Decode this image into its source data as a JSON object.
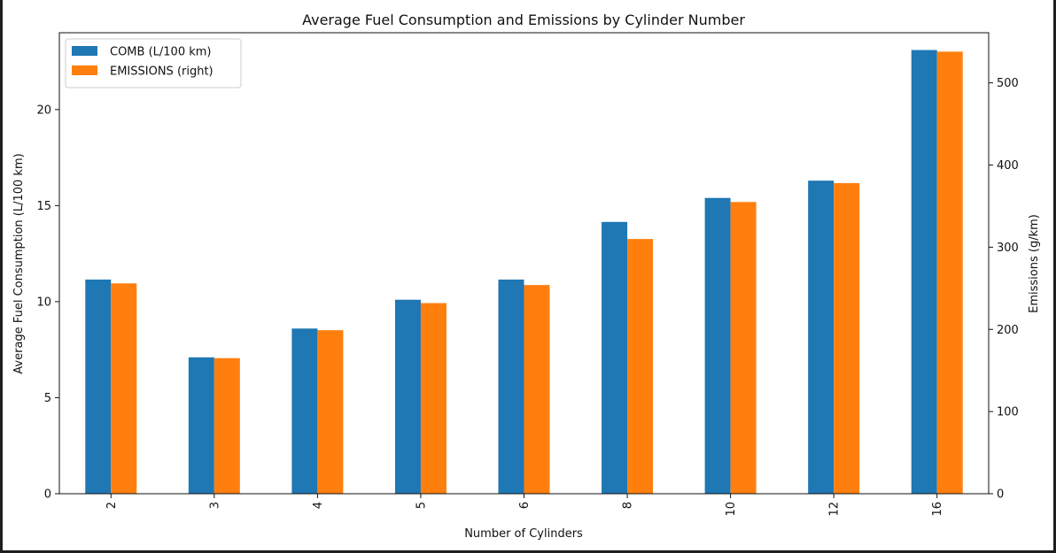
{
  "chart_data": {
    "type": "bar",
    "title": "Average Fuel Consumption and Emissions by Cylinder Number",
    "xlabel": "Number of Cylinders",
    "ylabel": "Average Fuel Consumption (L/100 km)",
    "ylabel_right": "Emissions (g/km)",
    "categories": [
      "2",
      "3",
      "4",
      "5",
      "6",
      "8",
      "10",
      "12",
      "16"
    ],
    "ylim": [
      0,
      24
    ],
    "ylim_right": [
      0,
      561
    ],
    "yticks": [
      0,
      5,
      10,
      15,
      20
    ],
    "yticks_right": [
      0,
      100,
      200,
      300,
      400,
      500
    ],
    "legend_position": "upper-left",
    "grid": false,
    "series": [
      {
        "name": "COMB (L/100 km)",
        "axis": "left",
        "color": "#1f77b4",
        "values": [
          11.15,
          7.1,
          8.6,
          10.1,
          11.15,
          14.15,
          15.4,
          16.3,
          23.1
        ]
      },
      {
        "name": "EMISSIONS (right)",
        "axis": "right",
        "color": "#ff7f0e",
        "values": [
          256,
          165,
          199,
          232,
          254,
          310,
          355,
          378,
          538
        ]
      }
    ]
  }
}
